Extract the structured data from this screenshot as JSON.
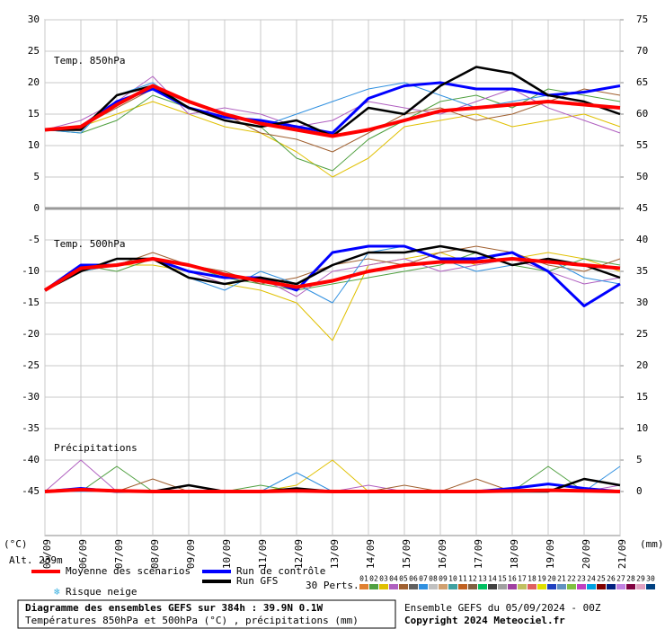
{
  "chart_data": {
    "type": "line",
    "title": "Diagramme des ensembles GEFS sur 384h : 39.9N 0.1W",
    "subtitle": "Températures 850hPa et 500hPa (°C) , précipitations (mm)",
    "run_info": "Ensemble GEFS du 05/09/2024 - 00Z",
    "copyright": "Copyright 2024 Meteociel.fr",
    "y_unit": "(°C)",
    "y2_unit": "(mm)",
    "altitude": "Alt. 239m",
    "categories": [
      "05/09",
      "06/09",
      "07/09",
      "08/09",
      "09/09",
      "10/09",
      "11/09",
      "12/09",
      "13/09",
      "14/09",
      "15/09",
      "16/09",
      "17/09",
      "18/09",
      "19/09",
      "20/09",
      "21/09"
    ],
    "ylim": [
      -52,
      30
    ],
    "yticks": [
      30,
      25,
      20,
      15,
      10,
      5,
      0,
      -5,
      -10,
      -15,
      -20,
      -25,
      -30,
      -35,
      -40,
      -45
    ],
    "y2lim": [
      -7,
      75
    ],
    "y2ticks": [
      75,
      70,
      65,
      60,
      55,
      50,
      45,
      40,
      35,
      30,
      25,
      20,
      15,
      10,
      5,
      0
    ],
    "grid": true,
    "legend": [
      {
        "name": "Moyenne des scénarios",
        "color": "#ff0000"
      },
      {
        "name": "Run de contrôle",
        "color": "#0000ff"
      },
      {
        "name": "Run GFS",
        "color": "#000000"
      }
    ],
    "snow_label": "Risque neige",
    "perts_label": "30 Perts.",
    "members": [
      {
        "name": "01",
        "color": "#e08030"
      },
      {
        "name": "02",
        "color": "#50a040"
      },
      {
        "name": "03",
        "color": "#e0c000"
      },
      {
        "name": "04",
        "color": "#b060c0"
      },
      {
        "name": "05",
        "color": "#a06030"
      },
      {
        "name": "06",
        "color": "#606060"
      },
      {
        "name": "07",
        "color": "#3090e0"
      },
      {
        "name": "08",
        "color": "#c0c0c0"
      },
      {
        "name": "09",
        "color": "#d0a070"
      },
      {
        "name": "10",
        "color": "#40a0a0"
      },
      {
        "name": "11",
        "color": "#c06020"
      },
      {
        "name": "12",
        "color": "#806040"
      },
      {
        "name": "13",
        "color": "#00c060"
      },
      {
        "name": "14",
        "color": "#404040"
      },
      {
        "name": "15",
        "color": "#a0a0a0"
      },
      {
        "name": "16",
        "color": "#a040a0"
      },
      {
        "name": "17",
        "color": "#c0c060"
      },
      {
        "name": "18",
        "color": "#e06060"
      },
      {
        "name": "19",
        "color": "#e0e000"
      },
      {
        "name": "20",
        "color": "#2040c0"
      },
      {
        "name": "21",
        "color": "#6090c0"
      },
      {
        "name": "22",
        "color": "#80c040"
      },
      {
        "name": "23",
        "color": "#c040c0"
      },
      {
        "name": "24",
        "color": "#00a0e0"
      },
      {
        "name": "25",
        "color": "#800000"
      },
      {
        "name": "26",
        "color": "#002080"
      },
      {
        "name": "27",
        "color": "#c080e0"
      },
      {
        "name": "28",
        "color": "#800040"
      },
      {
        "name": "29",
        "color": "#e0a0c0"
      },
      {
        "name": "30",
        "color": "#004080"
      }
    ],
    "panels": [
      {
        "label": "Temp. 850hPa",
        "main": [
          [
            12.5,
            13,
            16.5,
            19.5,
            17,
            15,
            13.5,
            12.5,
            11.5,
            12.5,
            14,
            15.5,
            16,
            16.5,
            17,
            16.5,
            16
          ],
          [
            12.5,
            13,
            17,
            19,
            16,
            14.5,
            14,
            13,
            12,
            17.5,
            19.5,
            20,
            19,
            19,
            18,
            18.5,
            19.5
          ],
          [
            12.5,
            12.5,
            18,
            19.5,
            16,
            14,
            13,
            14,
            11.5,
            16,
            15,
            19.5,
            22.5,
            21.5,
            18,
            17,
            15
          ]
        ],
        "series": [
          {
            "color": "#e0c000",
            "values": [
              12.5,
              13,
              15,
              17,
              15,
              13,
              12,
              9,
              5,
              8,
              13,
              14,
              15,
              13,
              14,
              15,
              13
            ]
          },
          {
            "color": "#50a040",
            "values": [
              12.5,
              12,
              14,
              18,
              16,
              14,
              13,
              8,
              6,
              11,
              14,
              17,
              18,
              16,
              19,
              18,
              17
            ]
          },
          {
            "color": "#b060c0",
            "values": [
              12.5,
              14,
              17,
              21,
              15,
              16,
              15,
              13,
              14,
              17,
              16,
              15,
              17,
              19,
              16,
              14,
              12
            ]
          },
          {
            "color": "#a06030",
            "values": [
              12.5,
              13,
              16,
              19,
              17,
              15,
              12,
              11,
              9,
              12,
              15,
              16,
              14,
              15,
              17,
              19,
              18
            ]
          },
          {
            "color": "#3090e0",
            "values": [
              12.5,
              12,
              18,
              20,
              16,
              14,
              13,
              15,
              17,
              19,
              20,
              18,
              16,
              17,
              18,
              17,
              15
            ]
          }
        ]
      },
      {
        "label": "Temp. 500hPa",
        "main": [
          [
            -13,
            -9.5,
            -9,
            -8,
            -9,
            -10.5,
            -11.5,
            -12.5,
            -11.5,
            -10,
            -9,
            -8.5,
            -8.5,
            -8,
            -8.5,
            -9,
            -9.5
          ],
          [
            -13,
            -9,
            -9,
            -8,
            -10,
            -11,
            -11,
            -13,
            -7,
            -6,
            -6,
            -8,
            -8,
            -7,
            -10,
            -15.5,
            -12
          ],
          [
            -13,
            -10,
            -8,
            -8,
            -11,
            -12,
            -11,
            -12,
            -9,
            -7,
            -7,
            -6,
            -7,
            -9,
            -8,
            -9,
            -11
          ]
        ],
        "series": [
          {
            "color": "#e0c000",
            "values": [
              -13,
              -10,
              -9,
              -9,
              -10,
              -12,
              -13,
              -15,
              -21,
              -9,
              -8,
              -7,
              -9,
              -8,
              -7,
              -8,
              -10
            ]
          },
          {
            "color": "#50a040",
            "values": [
              -13,
              -9,
              -10,
              -8,
              -9,
              -11,
              -12,
              -13,
              -12,
              -11,
              -10,
              -9,
              -7,
              -9,
              -10,
              -8,
              -9
            ]
          },
          {
            "color": "#b060c0",
            "values": [
              -13,
              -10,
              -8,
              -8,
              -10,
              -12,
              -11,
              -14,
              -10,
              -9,
              -8,
              -10,
              -9,
              -8,
              -10,
              -12,
              -11
            ]
          },
          {
            "color": "#a06030",
            "values": [
              -13,
              -9,
              -9,
              -7,
              -9,
              -10,
              -12,
              -11,
              -9,
              -8,
              -9,
              -7,
              -6,
              -7,
              -9,
              -10,
              -8
            ]
          },
          {
            "color": "#3090e0",
            "values": [
              -13,
              -10,
              -9,
              -8,
              -11,
              -13,
              -10,
              -12,
              -15,
              -7,
              -6,
              -8,
              -10,
              -9,
              -8,
              -11,
              -12
            ]
          }
        ]
      },
      {
        "label": "Précipitations",
        "main": [
          [
            0,
            0.3,
            0.1,
            0,
            0,
            0,
            0,
            0.1,
            0,
            0,
            0,
            0,
            0,
            0.1,
            0.2,
            0.1,
            0
          ],
          [
            0,
            0.5,
            0,
            0,
            0,
            0,
            0,
            0.3,
            0,
            0,
            0,
            0,
            0,
            0.5,
            1.2,
            0.5,
            0
          ],
          [
            0,
            0.3,
            0,
            0,
            1,
            0,
            0,
            0.5,
            0,
            0,
            0,
            0,
            0,
            0,
            0,
            2,
            1
          ]
        ],
        "series": [
          {
            "color": "#e0c000",
            "values": [
              0,
              0,
              0,
              0,
              0,
              0,
              0,
              1,
              5,
              0,
              0,
              0,
              0,
              0,
              0,
              0,
              0
            ]
          },
          {
            "color": "#50a040",
            "values": [
              0,
              0,
              4,
              0,
              0,
              0,
              1,
              0,
              0,
              0,
              0,
              0,
              0,
              0,
              4,
              0,
              0
            ]
          },
          {
            "color": "#b060c0",
            "values": [
              0,
              5,
              0,
              0,
              0,
              0,
              0,
              0,
              0,
              1,
              0,
              0,
              0,
              0,
              0,
              0,
              1
            ]
          },
          {
            "color": "#a06030",
            "values": [
              0,
              0,
              0,
              2,
              0,
              0,
              0,
              0,
              0,
              0,
              1,
              0,
              2,
              0,
              0,
              0,
              0
            ]
          },
          {
            "color": "#3090e0",
            "values": [
              0,
              0,
              0,
              0,
              0,
              0,
              0,
              3,
              0,
              0,
              0,
              0,
              0,
              0,
              0,
              0,
              4
            ]
          }
        ]
      }
    ]
  }
}
